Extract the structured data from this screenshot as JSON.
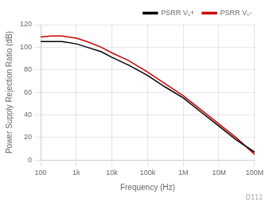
{
  "chart_data": {
    "type": "line",
    "xlabel": "Frequency (Hz)",
    "ylabel": "Power Supply Rejection Ratio (dB)",
    "log": "x",
    "xlim": [
      100,
      100000000
    ],
    "ylim": [
      0,
      120
    ],
    "xticks": [
      100,
      {
        "value": 1000,
        "label": "1k"
      },
      {
        "value": 10000,
        "label": "10k"
      },
      {
        "value": 100000,
        "label": "100k"
      },
      {
        "value": 1000000,
        "label": "1M"
      },
      {
        "value": 10000000,
        "label": "10M"
      },
      {
        "value": 100000000,
        "label": "100M"
      }
    ],
    "yticks": [
      0,
      20,
      40,
      60,
      80,
      100,
      120
    ],
    "x": [
      100,
      200,
      400,
      1000,
      2000,
      5000,
      10000,
      30000,
      100000,
      300000,
      1000000,
      3000000,
      10000000,
      30000000,
      100000000
    ],
    "series": [
      {
        "name": "PSRR Vₛ+",
        "color": "#000000",
        "values": [
          105,
          105,
          105,
          103,
          100,
          96,
          91,
          84,
          75,
          65,
          55,
          43,
          30,
          18,
          7
        ]
      },
      {
        "name": "PSRR Vₛ-",
        "color": "#cc0000",
        "values": [
          109,
          110,
          110,
          108,
          105,
          100,
          95,
          88,
          78,
          68,
          57,
          45,
          32,
          20,
          5
        ]
      }
    ],
    "grid": true,
    "legend": "upper right",
    "annotations": [
      "D112"
    ]
  }
}
